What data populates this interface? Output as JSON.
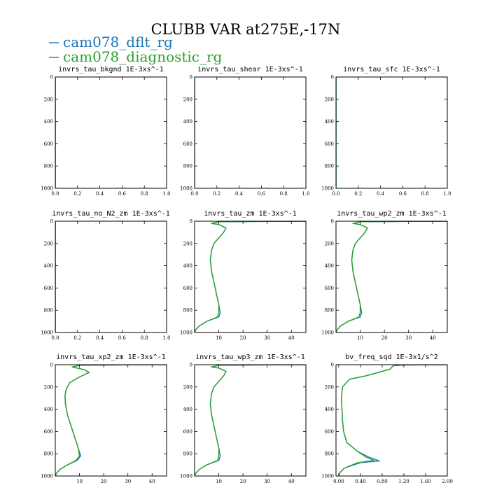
{
  "page": {
    "title": "CLUBB VAR at275E,-17N"
  },
  "legend": [
    {
      "label": "cam078_dflt_rg",
      "color": "#1f77b4"
    },
    {
      "label": "cam078_diagnostic_rg",
      "color": "#2ca02c"
    }
  ],
  "chart_data": [
    {
      "type": "line",
      "title": "invrs_tau_bkgnd   1E-3xs^-1",
      "xlim": [
        0,
        1
      ],
      "ylim": [
        1000,
        0
      ],
      "xticks": [
        0,
        0.2,
        0.4,
        0.6,
        0.8,
        1.0
      ],
      "xtick_labels": [
        "0.0",
        "0.2",
        "0.4",
        "0.6",
        "0.8",
        "1.0"
      ],
      "yticks": [
        0,
        200,
        400,
        600,
        800,
        1000
      ],
      "series": [
        {
          "color": "#1f77b4",
          "x": [
            0,
            0
          ],
          "y": [
            0,
            1000
          ]
        },
        {
          "color": "#2ca02c",
          "x": [
            0,
            0
          ],
          "y": [
            0,
            1000
          ]
        }
      ]
    },
    {
      "type": "line",
      "title": "invrs_tau_shear   1E-3xs^-1",
      "xlim": [
        0,
        1
      ],
      "ylim": [
        1000,
        0
      ],
      "xticks": [
        0,
        0.2,
        0.4,
        0.6,
        0.8,
        1.0
      ],
      "xtick_labels": [
        "0.0",
        "0.2",
        "0.4",
        "0.6",
        "0.8",
        "1.0"
      ],
      "yticks": [
        0,
        200,
        400,
        600,
        800,
        1000
      ],
      "series": [
        {
          "color": "#1f77b4",
          "x": [
            0,
            0
          ],
          "y": [
            0,
            1000
          ]
        },
        {
          "color": "#2ca02c",
          "x": [
            0,
            0
          ],
          "y": [
            0,
            1000
          ]
        }
      ]
    },
    {
      "type": "line",
      "title": "invrs_tau_sfc   1E-3xs^-1",
      "xlim": [
        0,
        1
      ],
      "ylim": [
        1000,
        0
      ],
      "xticks": [
        0,
        0.2,
        0.4,
        0.6,
        0.8,
        1.0
      ],
      "xtick_labels": [
        "0.0",
        "0.2",
        "0.4",
        "0.6",
        "0.8",
        "1.0"
      ],
      "yticks": [
        0,
        200,
        400,
        600,
        800,
        1000
      ],
      "series": [
        {
          "color": "#1f77b4",
          "x": [
            0,
            0
          ],
          "y": [
            0,
            1000
          ]
        },
        {
          "color": "#2ca02c",
          "x": [
            0,
            0
          ],
          "y": [
            0,
            1000
          ]
        }
      ]
    },
    {
      "type": "line",
      "title": "invrs_tau_no_N2_zm   1E-3xs^-1",
      "xlim": [
        0,
        1
      ],
      "ylim": [
        1000,
        0
      ],
      "xticks": [
        0,
        0.2,
        0.4,
        0.6,
        0.8,
        1.0
      ],
      "xtick_labels": [
        "0.0",
        "0.2",
        "0.4",
        "0.6",
        "0.8",
        "1.0"
      ],
      "yticks": [
        0,
        200,
        400,
        600,
        800,
        1000
      ],
      "series": [
        {
          "color": "#1f77b4",
          "x": [
            0,
            0
          ],
          "y": [
            0,
            1000
          ]
        },
        {
          "color": "#2ca02c",
          "x": [
            0,
            0
          ],
          "y": [
            0,
            1000
          ]
        }
      ]
    },
    {
      "type": "line",
      "title": "invrs_tau_zm   1E-3xs^-1",
      "xlim": [
        0,
        46
      ],
      "ylim": [
        1000,
        0
      ],
      "xticks": [
        10,
        20,
        30,
        40
      ],
      "xtick_labels": [
        "10",
        "20",
        "30",
        "40"
      ],
      "yticks": [
        0,
        200,
        400,
        600,
        800,
        1000
      ],
      "series": [
        {
          "color": "#1f77b4",
          "x": [
            46,
            30,
            10,
            7,
            10,
            13,
            12,
            10,
            8,
            7,
            6.5,
            7,
            8,
            9,
            10,
            10.6,
            10,
            5,
            2,
            0.5,
            0
          ],
          "y": [
            0,
            2,
            5,
            20,
            30,
            60,
            100,
            150,
            200,
            260,
            350,
            450,
            550,
            650,
            750,
            820,
            860,
            900,
            940,
            975,
            1000
          ]
        },
        {
          "color": "#2ca02c",
          "x": [
            46,
            30,
            10,
            7,
            10,
            13,
            12,
            10,
            8,
            7,
            6.5,
            7,
            8,
            9,
            10,
            10,
            9.5,
            5,
            2,
            0.5,
            0
          ],
          "y": [
            0,
            2,
            5,
            20,
            30,
            60,
            100,
            150,
            200,
            260,
            350,
            450,
            550,
            650,
            750,
            820,
            860,
            900,
            940,
            975,
            1000
          ]
        }
      ]
    },
    {
      "type": "line",
      "title": "invrs_tau_wp2_zm   1E-3xs^-1",
      "xlim": [
        0,
        46
      ],
      "ylim": [
        1000,
        0
      ],
      "xticks": [
        10,
        20,
        30,
        40
      ],
      "xtick_labels": [
        "10",
        "20",
        "30",
        "40"
      ],
      "yticks": [
        0,
        200,
        400,
        600,
        800,
        1000
      ],
      "series": [
        {
          "color": "#1f77b4",
          "x": [
            46,
            30,
            10,
            7,
            10,
            13,
            12,
            10,
            8,
            7,
            6.5,
            7,
            8,
            9,
            10,
            10.6,
            10,
            5,
            2,
            0.5,
            0
          ],
          "y": [
            0,
            2,
            5,
            20,
            30,
            60,
            100,
            150,
            200,
            260,
            350,
            450,
            550,
            650,
            750,
            820,
            860,
            900,
            940,
            975,
            1000
          ]
        },
        {
          "color": "#2ca02c",
          "x": [
            46,
            30,
            10,
            7,
            10,
            13,
            12,
            10,
            8,
            7,
            6.5,
            7,
            8,
            9,
            10,
            10,
            9.5,
            5,
            2,
            0.5,
            0
          ],
          "y": [
            0,
            2,
            5,
            20,
            30,
            60,
            100,
            150,
            200,
            260,
            350,
            450,
            550,
            650,
            750,
            820,
            860,
            900,
            940,
            975,
            1000
          ]
        }
      ]
    },
    {
      "type": "line",
      "title": "invrs_tau_xp2_zm   1E-3xs^-1",
      "xlim": [
        0,
        46
      ],
      "ylim": [
        1000,
        0
      ],
      "xticks": [
        10,
        20,
        30,
        40
      ],
      "xtick_labels": [
        "10",
        "20",
        "30",
        "40"
      ],
      "yticks": [
        0,
        200,
        400,
        600,
        800,
        1000
      ],
      "series": [
        {
          "color": "#1f77b4",
          "x": [
            46,
            30,
            10,
            7,
            12,
            14,
            10,
            6,
            4.5,
            4,
            4.2,
            5,
            6.5,
            8,
            9.5,
            10.5,
            9,
            5,
            2,
            0.5,
            0
          ],
          "y": [
            0,
            2,
            5,
            20,
            45,
            70,
            110,
            160,
            220,
            280,
            350,
            450,
            550,
            650,
            750,
            820,
            860,
            900,
            940,
            975,
            1000
          ]
        },
        {
          "color": "#2ca02c",
          "x": [
            46,
            30,
            10,
            7,
            12,
            14,
            10,
            6,
            4.5,
            4,
            4.2,
            5,
            6.5,
            8,
            9.5,
            10,
            8.5,
            5,
            2,
            0.5,
            0
          ],
          "y": [
            0,
            2,
            5,
            20,
            45,
            70,
            110,
            160,
            220,
            280,
            350,
            450,
            550,
            650,
            750,
            820,
            860,
            900,
            940,
            975,
            1000
          ]
        }
      ]
    },
    {
      "type": "line",
      "title": "invrs_tau_wp3_zm   1E-3xs^-1",
      "xlim": [
        0,
        46
      ],
      "ylim": [
        1000,
        0
      ],
      "xticks": [
        10,
        20,
        30,
        40
      ],
      "xtick_labels": [
        "10",
        "20",
        "30",
        "40"
      ],
      "yticks": [
        0,
        200,
        400,
        600,
        800,
        1000
      ],
      "series": [
        {
          "color": "#1f77b4",
          "x": [
            46,
            30,
            10,
            7,
            10,
            13,
            12,
            10,
            8,
            7,
            6.5,
            7,
            8,
            9,
            10,
            10.6,
            10,
            5,
            2,
            0.5,
            0
          ],
          "y": [
            0,
            2,
            5,
            20,
            30,
            60,
            100,
            150,
            200,
            260,
            350,
            450,
            550,
            650,
            750,
            820,
            860,
            900,
            940,
            975,
            1000
          ]
        },
        {
          "color": "#2ca02c",
          "x": [
            46,
            30,
            10,
            7,
            10,
            13,
            12,
            10,
            8,
            7,
            6.5,
            7,
            8,
            9,
            10,
            10,
            9.5,
            5,
            2,
            0.5,
            0
          ],
          "y": [
            0,
            2,
            5,
            20,
            30,
            60,
            100,
            150,
            200,
            260,
            350,
            450,
            550,
            650,
            750,
            820,
            860,
            900,
            940,
            975,
            1000
          ]
        }
      ]
    },
    {
      "type": "line",
      "title": "bv_freq_sqd   1E-3x1/s^2",
      "xlim": [
        -0.05,
        2.0
      ],
      "ylim": [
        1000,
        0
      ],
      "xticks": [
        0.0,
        0.4,
        0.8,
        1.2,
        1.6,
        2.0
      ],
      "xtick_labels": [
        "0.00",
        "0.40",
        "0.80",
        "1.20",
        "1.60",
        "2.00"
      ],
      "yticks": [
        0,
        200,
        400,
        600,
        800,
        1000
      ],
      "series": [
        {
          "color": "#1f77b4",
          "x": [
            2.0,
            1.2,
            1.0,
            0.95,
            0.5,
            0.2,
            0.07,
            0.05,
            0.06,
            0.07,
            0.09,
            0.15,
            0.35,
            0.55,
            0.75,
            0.4,
            0.1,
            0.02,
            0
          ],
          "y": [
            0,
            3,
            10,
            40,
            100,
            130,
            200,
            300,
            400,
            500,
            600,
            700,
            780,
            830,
            865,
            880,
            930,
            970,
            1000
          ]
        },
        {
          "color": "#2ca02c",
          "x": [
            2.0,
            1.2,
            1.0,
            0.95,
            0.5,
            0.2,
            0.07,
            0.05,
            0.06,
            0.07,
            0.09,
            0.15,
            0.35,
            0.5,
            0.65,
            0.35,
            0.1,
            0.02,
            0
          ],
          "y": [
            0,
            3,
            10,
            40,
            100,
            130,
            200,
            300,
            400,
            500,
            600,
            700,
            780,
            830,
            860,
            880,
            930,
            970,
            1000
          ]
        }
      ]
    }
  ]
}
